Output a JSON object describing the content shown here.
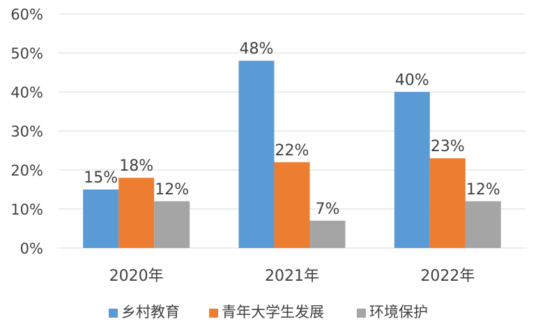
{
  "chart_data": {
    "type": "bar",
    "title": "",
    "xlabel": "",
    "ylabel": "",
    "categories": [
      "2020年",
      "2021年",
      "2022年"
    ],
    "series": [
      {
        "name": "乡村教育",
        "values": [
          15,
          48,
          40
        ],
        "labels": [
          "15%",
          "48%",
          "40%"
        ],
        "color": "#5B9BD5"
      },
      {
        "name": "青年大学生发展",
        "values": [
          18,
          22,
          23
        ],
        "labels": [
          "18%",
          "22%",
          "23%"
        ],
        "color": "#ED7D31"
      },
      {
        "name": "环境保护",
        "values": [
          12,
          7,
          12
        ],
        "labels": [
          "12%",
          "7%",
          "12%"
        ],
        "color": "#A5A5A5"
      }
    ],
    "ylim": [
      0,
      60
    ],
    "yticks": [
      0,
      10,
      20,
      30,
      40,
      50,
      60
    ],
    "ytick_labels": [
      "0%",
      "10%",
      "20%",
      "30%",
      "40%",
      "50%",
      "60%"
    ],
    "grid": true,
    "legend_position": "bottom",
    "gridline_color": "#D9D9D9"
  }
}
